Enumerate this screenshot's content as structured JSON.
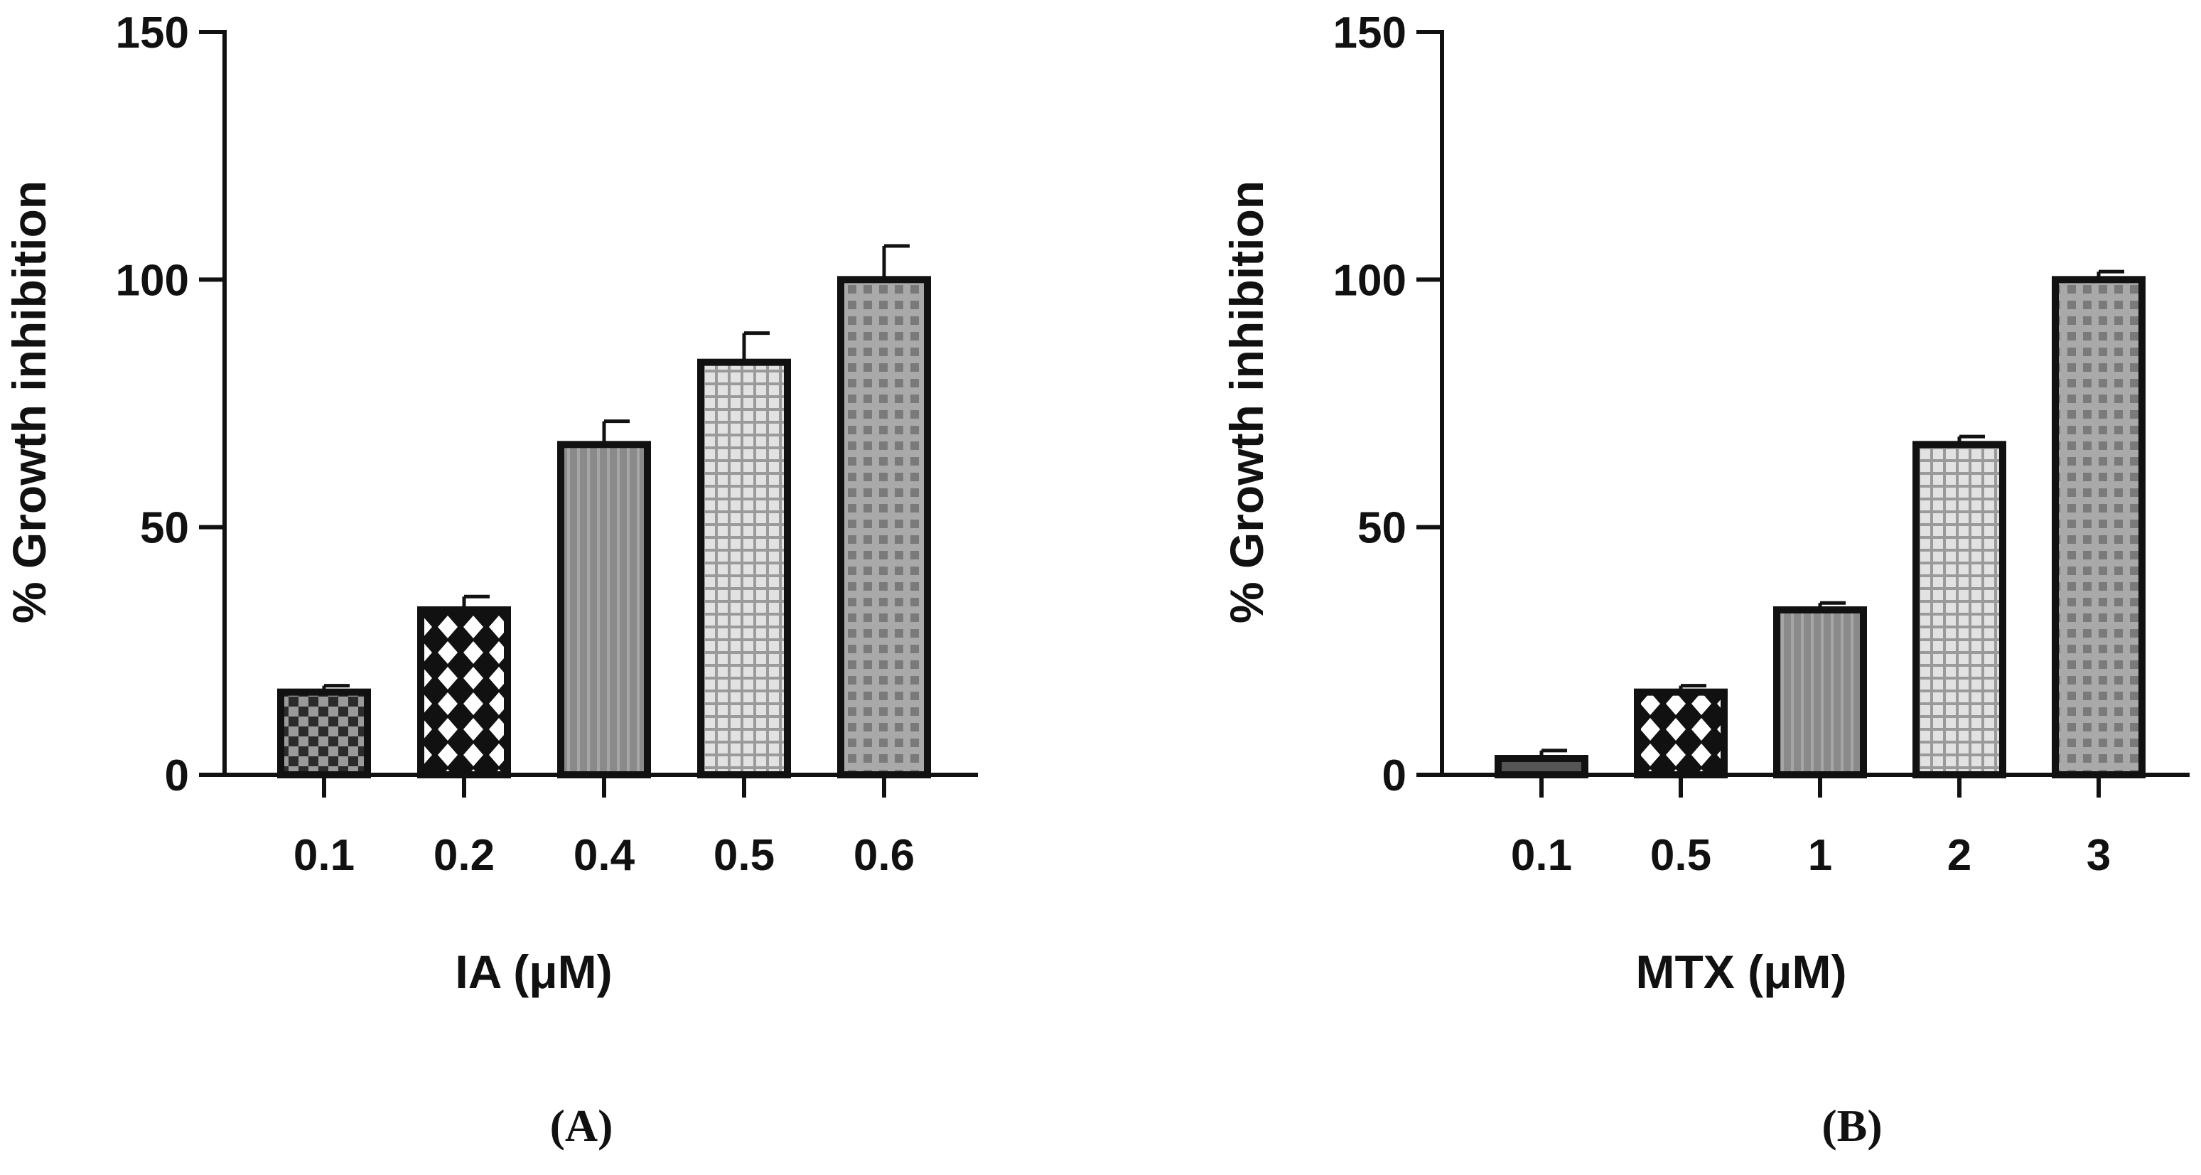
{
  "chart_data": [
    {
      "type": "bar",
      "panel_label": "(A)",
      "title": "",
      "xlabel": "IA (μM)",
      "ylabel": "% Growth inhibition",
      "ylim": [
        0,
        150
      ],
      "yticks": [
        "0",
        "50",
        "100",
        "150"
      ],
      "categories": [
        "0.1",
        "0.2",
        "0.4",
        "0.5",
        "0.6"
      ],
      "values": [
        16.7,
        33.3,
        66.7,
        83.3,
        100
      ],
      "errors": [
        1.3,
        2.7,
        4.7,
        5.9,
        6.8
      ],
      "patterns": [
        "checker",
        "diamond",
        "vstripe",
        "grid",
        "dots"
      ],
      "grid": false,
      "legend": "none"
    },
    {
      "type": "bar",
      "panel_label": "(B)",
      "title": "",
      "xlabel": "MTX (μM)",
      "ylabel": "% Growth inhibition",
      "ylim": [
        0,
        150
      ],
      "yticks": [
        "0",
        "50",
        "100",
        "150"
      ],
      "categories": [
        "0.1",
        "0.5",
        "1",
        "2",
        "3"
      ],
      "values": [
        3.3,
        16.7,
        33.3,
        66.7,
        100
      ],
      "errors": [
        1.6,
        1.3,
        1.4,
        1.6,
        1.6
      ],
      "patterns": [
        "dark",
        "diamond",
        "vstripe",
        "grid",
        "dots"
      ],
      "grid": false,
      "legend": "none"
    }
  ]
}
